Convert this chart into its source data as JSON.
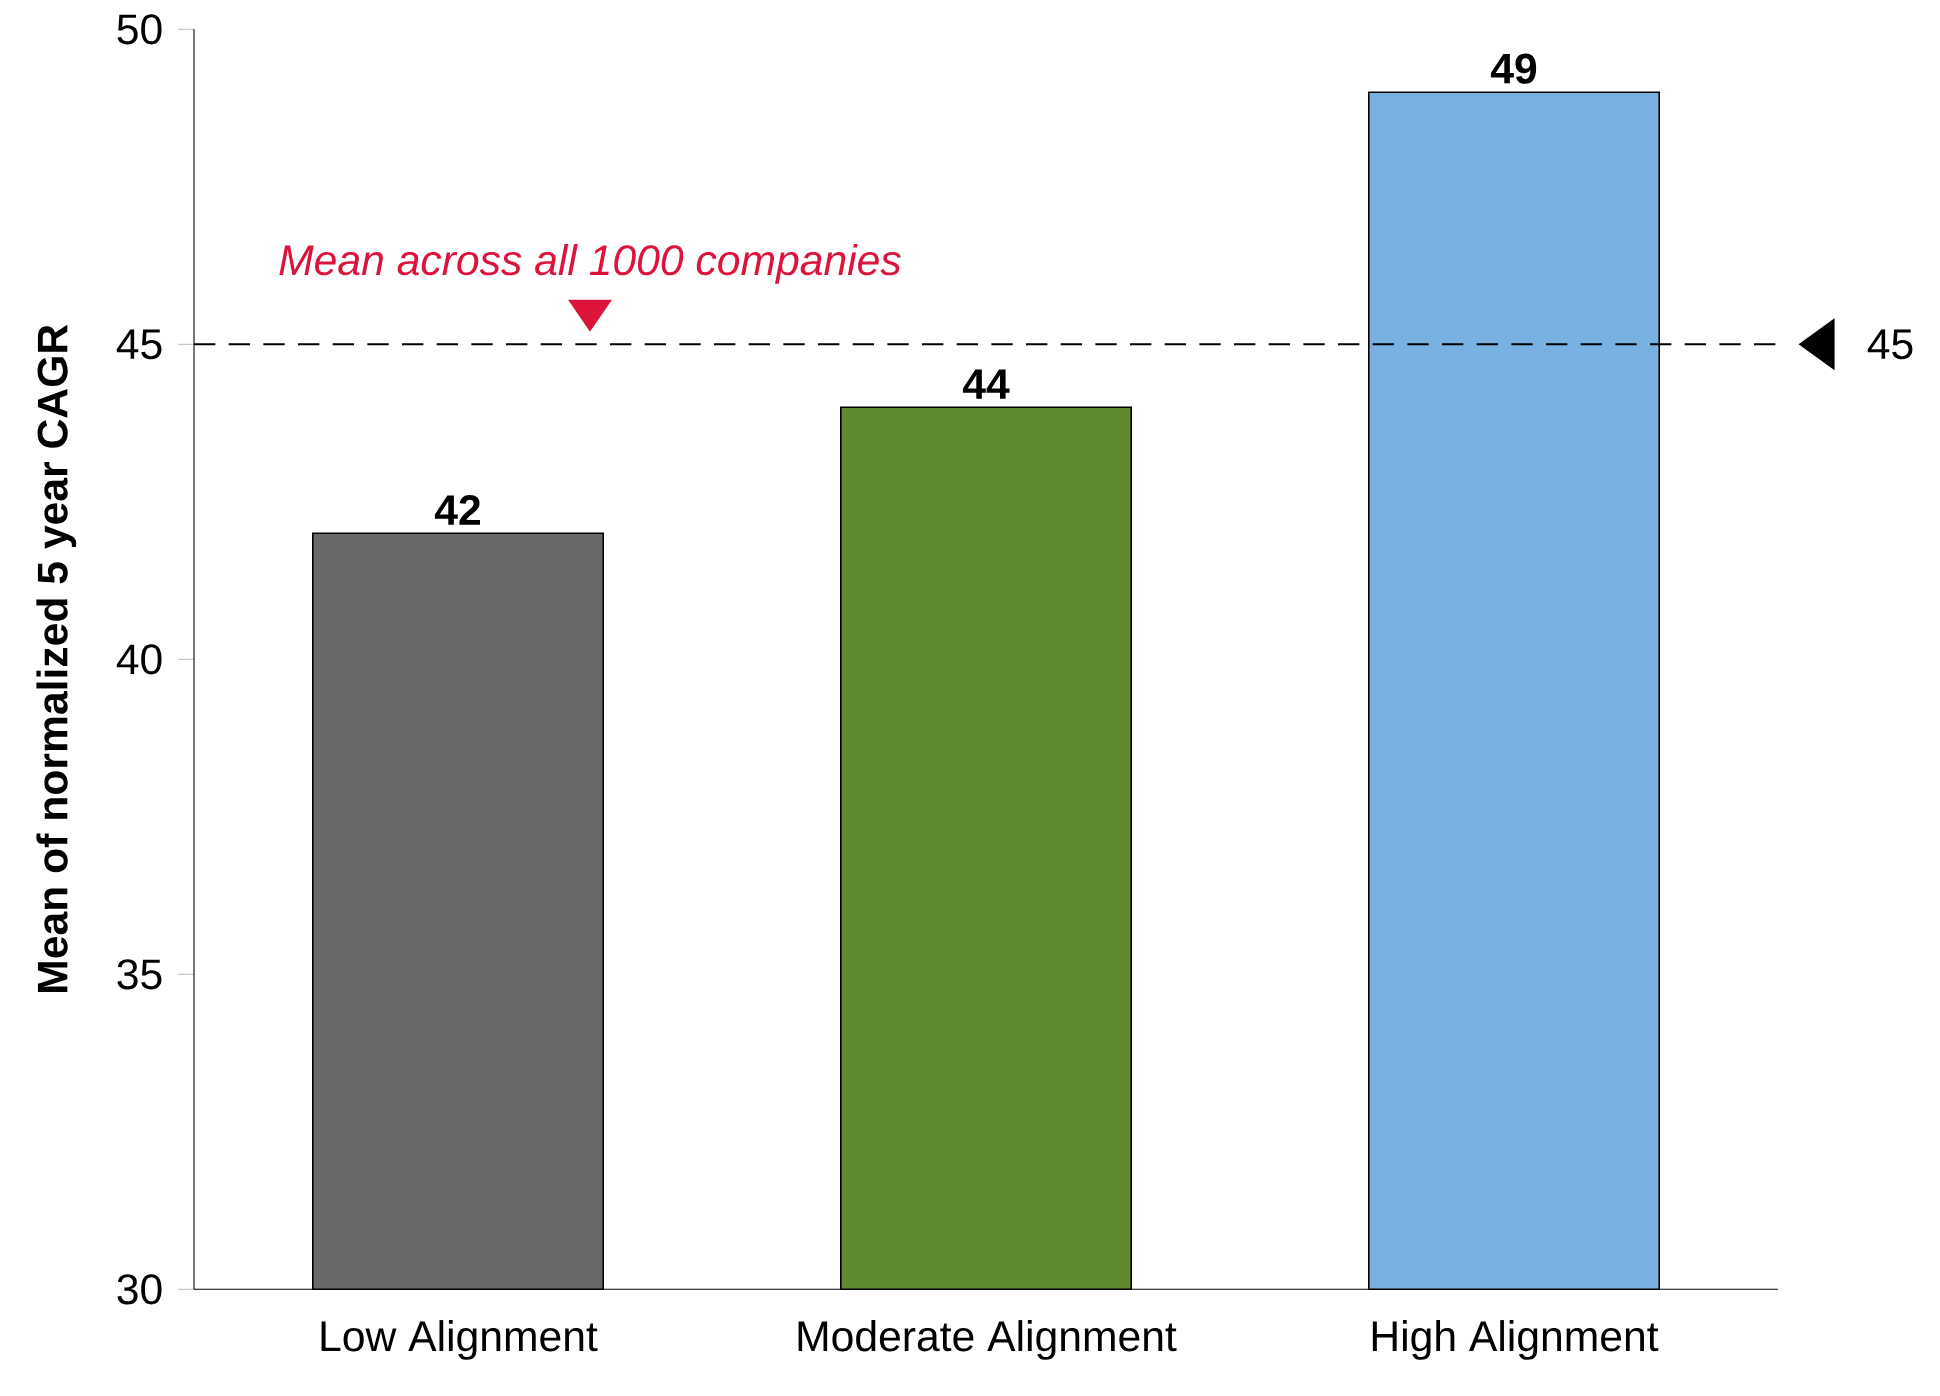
{
  "chart_data": {
    "type": "bar",
    "ylabel": "Mean of normalized 5 year CAGR",
    "categories": [
      "Low Alignment",
      "Moderate Alignment",
      "High Alignment"
    ],
    "values": [
      42,
      44,
      49
    ],
    "colors": [
      "#696969",
      "#5f8a2d",
      "#79b1e3"
    ],
    "ylim": [
      30,
      50
    ],
    "yticks": [
      30,
      35,
      40,
      45,
      50
    ],
    "data_labels": true,
    "ref_lines": [
      {
        "axis": "y",
        "value": 45,
        "label": "45",
        "line_style": "dashed"
      }
    ],
    "annotations": [
      "Mean across all 1000 companies"
    ]
  }
}
